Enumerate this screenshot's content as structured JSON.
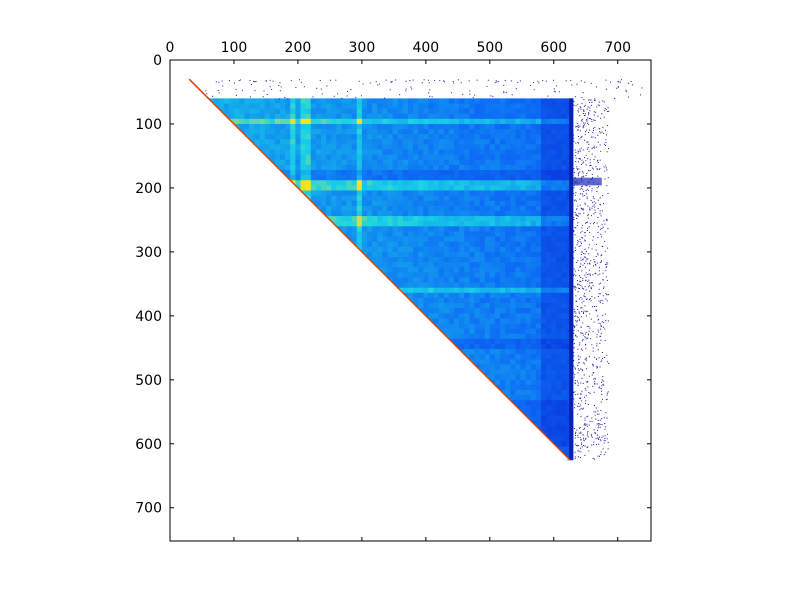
{
  "chart_data": {
    "type": "heatmap",
    "title": "",
    "xlabel": "",
    "ylabel": "",
    "xlim": [
      0,
      752
    ],
    "ylim": [
      752,
      0
    ],
    "x_axis_position": "top",
    "y_axis_inverted": true,
    "grid": false,
    "legend": "none",
    "colormap": "jet",
    "xticks": [
      0,
      100,
      200,
      300,
      400,
      500,
      600,
      700
    ],
    "yticks": [
      0,
      100,
      200,
      300,
      400,
      500,
      600,
      700
    ],
    "xtick_labels": [
      "0",
      "100",
      "200",
      "300",
      "400",
      "500",
      "600",
      "700"
    ],
    "ytick_labels": [
      "0",
      "100",
      "200",
      "300",
      "400",
      "500",
      "600",
      "700"
    ],
    "upper_triangle": {
      "row_start": 60,
      "row_end": 625,
      "col_end": 630
    },
    "diagonal_start": 30,
    "sparse_top_rows": [
      30,
      60
    ],
    "sparse_right_cols": [
      630,
      685
    ],
    "bright_row_bands": [
      [
        88,
        96
      ],
      [
        183,
        200
      ],
      [
        240,
        256
      ],
      [
        352,
        362
      ]
    ],
    "bright_col_bands": [
      [
        188,
        196
      ],
      [
        203,
        218
      ],
      [
        290,
        300
      ]
    ],
    "dark_row_bands": [
      [
        168,
        182
      ],
      [
        434,
        450
      ],
      [
        530,
        600
      ]
    ],
    "colors": {
      "base": "#0d6cf5",
      "dark": "#0a3fe0",
      "bright": "#19d3e6",
      "hot": "#ffe31a",
      "diag": "#e63c00",
      "sparse": "#1a1aa8"
    }
  }
}
